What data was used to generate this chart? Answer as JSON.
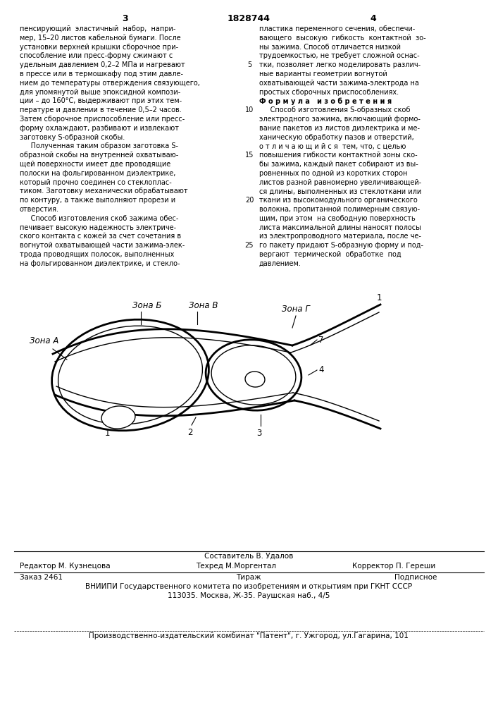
{
  "bg_color": "#ffffff",
  "page_number_left": "3",
  "page_number_center": "1828744",
  "page_number_right": "4",
  "left_col_text": [
    "пенсирующий  эластичный  набор,  напри-",
    "мер, 15–20 листов кабельной бумаги. После",
    "установки верхней крышки сборочное при-",
    "способление или пресс-форму сжимают с",
    "удельным давлением 0,2–2 МПа и нагревают",
    "в прессе или в термошкафу под этим давле-",
    "нием до температуры отверждения связующего,",
    "для упомянутой выше эпоксидной компози-",
    "ции – до 160°С, выдерживают при этих тем-",
    "пературе и давлении в течение 0,5–2 часов.",
    "Затем сборочное приспособление или пресс-",
    "форму охлаждают, разбивают и извлекают",
    "заготовку S-образной скобы.",
    "     Полученная таким образом заготовка S-",
    "образной скобы на внутренней охватываю-",
    "щей поверхности имеет две проводящие",
    "полоски на фольгированном диэлектрике,",
    "который прочно соединен со стеклоплас-",
    "тиком. Заготовку механически обрабатывают",
    "по контуру, а также выполняют прорези и",
    "отверстия.",
    "     Способ изготовления скоб зажима обес-",
    "печивает высокую надежность электриче-",
    "ского контакта с кожей за счет сочетания в",
    "вогнутой охватывающей части зажима-элек-",
    "трода проводящих полосок, выполненных",
    "на фольгированном диэлектрике, и стекло-"
  ],
  "right_col_text": [
    "пластика переменного сечения, обеспечи-",
    "вающего  высокую  гибкость  контактной  зо-",
    "ны зажима. Способ отличается низкой",
    "трудоемкостью, не требует сложной оснас-",
    "тки, позволяет легко моделировать различ-",
    "ные варианты геометрии вогнутой",
    "охватывающей части зажима-электрода на",
    "простых сборочных приспособлениях.",
    "Ф о р м у л а   и з о б р е т е н и я",
    "     Способ изготовления S-образных скоб",
    "электродного зажима, включающий формо-",
    "вание пакетов из листов диэлектрика и ме-",
    "ханическую обработку пазов и отверстий,",
    "о т л и ч а ю щ и й с я  тем, что, с целью",
    "повышения гибкости контактной зоны ско-",
    "бы зажима, каждый пакет собирают из вы-",
    "ровненных по одной из коротких сторон",
    "листов разной равномерно увеличивающей-",
    "ся длины, выполненных из стеклоткани или",
    "ткани из высокомодульного органического",
    "волокна, пропитанной полимерным связую-",
    "щим, при этом  на свободную поверхность",
    "листа максимальной длины наносят полосы",
    "из электропроводного материала, после че-",
    "го пакету придают S-образную форму и под-",
    "вергают  термической  обработке  под",
    "давлением."
  ],
  "line_numbers": [
    5,
    10,
    15,
    20,
    25
  ],
  "formula_title": "Ф о р м у л а   и з о б р е т е н и я",
  "bottom_составитель": "Составитель В. Удалов",
  "bottom_редактор": "Редактор М. Кузнецова",
  "bottom_техред": "Техред М.Моргентал",
  "bottom_корректор": "Корректор П. Гереши",
  "bottom_заказ": "Заказ 2461",
  "bottom_тираж": "Тираж",
  "bottom_подписное": "Подписное",
  "bottom_вниипи": "ВНИИПИ Государственного комитета по изобретениям и открытиям при ГКНТ СССР",
  "bottom_адрес": "113035. Москва, Ж-35. Раушская наб., 4/5",
  "bottom_комбинат": "Производственно-издательский комбинат \"Патент\", г. Ужгород, ул.Гагарина, 101"
}
